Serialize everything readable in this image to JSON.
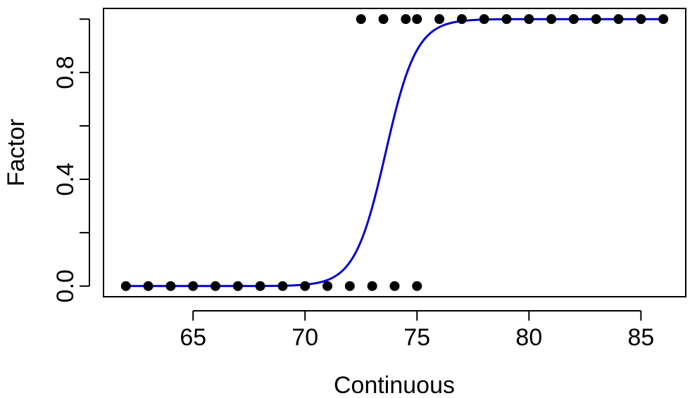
{
  "chart_data": {
    "type": "scatter",
    "title": "",
    "xlabel": "Continuous",
    "ylabel": "Factor",
    "xlim": [
      61.0,
      87.0
    ],
    "ylim": [
      -0.04,
      1.04
    ],
    "x_ticks": [
      65,
      70,
      75,
      80,
      85
    ],
    "x_tick_labels": [
      "65",
      "70",
      "75",
      "80",
      "85"
    ],
    "y_ticks": [
      0.0,
      0.2,
      0.4,
      0.6,
      0.8,
      1.0
    ],
    "y_tick_labels": [
      "0.0",
      "",
      "0.4",
      "",
      "0.8",
      ""
    ],
    "grid": false,
    "point_color": "#000000",
    "curve_color": "#0000cc",
    "series": [
      {
        "kind": "points",
        "x": [
          62,
          63,
          64,
          65,
          66,
          67,
          68,
          69,
          70,
          71,
          72,
          73,
          74,
          75,
          72.5,
          73.5,
          74.5,
          75,
          76,
          77,
          78,
          79,
          80,
          81,
          82,
          83,
          84,
          85,
          86
        ],
        "y": [
          0,
          0,
          0,
          0,
          0,
          0,
          0,
          0,
          0,
          0,
          0,
          0,
          0,
          0,
          1,
          1,
          1,
          1,
          1,
          1,
          1,
          1,
          1,
          1,
          1,
          1,
          1,
          1,
          1
        ]
      },
      {
        "kind": "logistic-curve",
        "x_range": [
          62,
          86
        ],
        "midpoint": 73.6,
        "slope": 1.45
      }
    ]
  }
}
